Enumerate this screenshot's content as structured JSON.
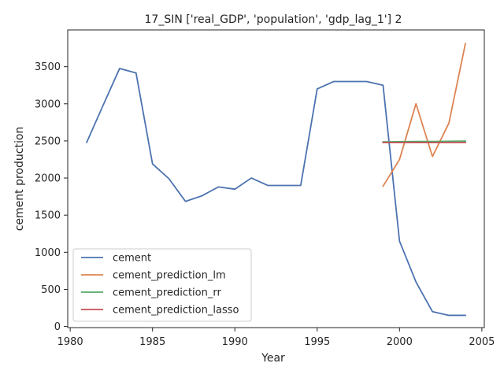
{
  "chart_data": {
    "type": "line",
    "title": "17_SIN ['real_GDP', 'population', 'gdp_lag_1'] 2",
    "xlabel": "Year",
    "ylabel": "cement production",
    "xlim": [
      1979.85,
      2005.15
    ],
    "ylim": [
      -15,
      3995
    ],
    "xticks": [
      1980,
      1985,
      1990,
      1995,
      2000,
      2005
    ],
    "yticks": [
      0,
      500,
      1000,
      1500,
      2000,
      2500,
      3000,
      3500
    ],
    "grid": false,
    "legend_position": "lower-left",
    "series": [
      {
        "name": "cement",
        "color": "#4c72b0",
        "x": [
          1981,
          1982,
          1983,
          1984,
          1985,
          1986,
          1987,
          1988,
          1989,
          1990,
          1991,
          1992,
          1993,
          1994,
          1995,
          1996,
          1997,
          1998,
          1999,
          2000,
          2001,
          2002,
          2003,
          2004
        ],
        "y": [
          2480,
          2980,
          3475,
          3415,
          2190,
          1990,
          1685,
          1760,
          1880,
          1850,
          2000,
          1900,
          1900,
          1900,
          3200,
          3300,
          3300,
          3300,
          3250,
          1150,
          600,
          200,
          150,
          150
        ]
      },
      {
        "name": "cement_prediction_lm",
        "color": "#dd8452",
        "x": [
          1999,
          2000,
          2001,
          2002,
          2003,
          2004
        ],
        "y": [
          1890,
          2250,
          3000,
          2290,
          2740,
          3810
        ]
      },
      {
        "name": "cement_prediction_rr",
        "color": "#55a868",
        "x": [
          1999,
          2000,
          2001,
          2002,
          2003,
          2004
        ],
        "y": [
          2487,
          2490,
          2492,
          2493,
          2495,
          2497
        ]
      },
      {
        "name": "cement_prediction_lasso",
        "color": "#c44e52",
        "x": [
          1999,
          2000,
          2001,
          2002,
          2003,
          2004
        ],
        "y": [
          2478,
          2478,
          2478,
          2478,
          2478,
          2478
        ]
      }
    ]
  }
}
